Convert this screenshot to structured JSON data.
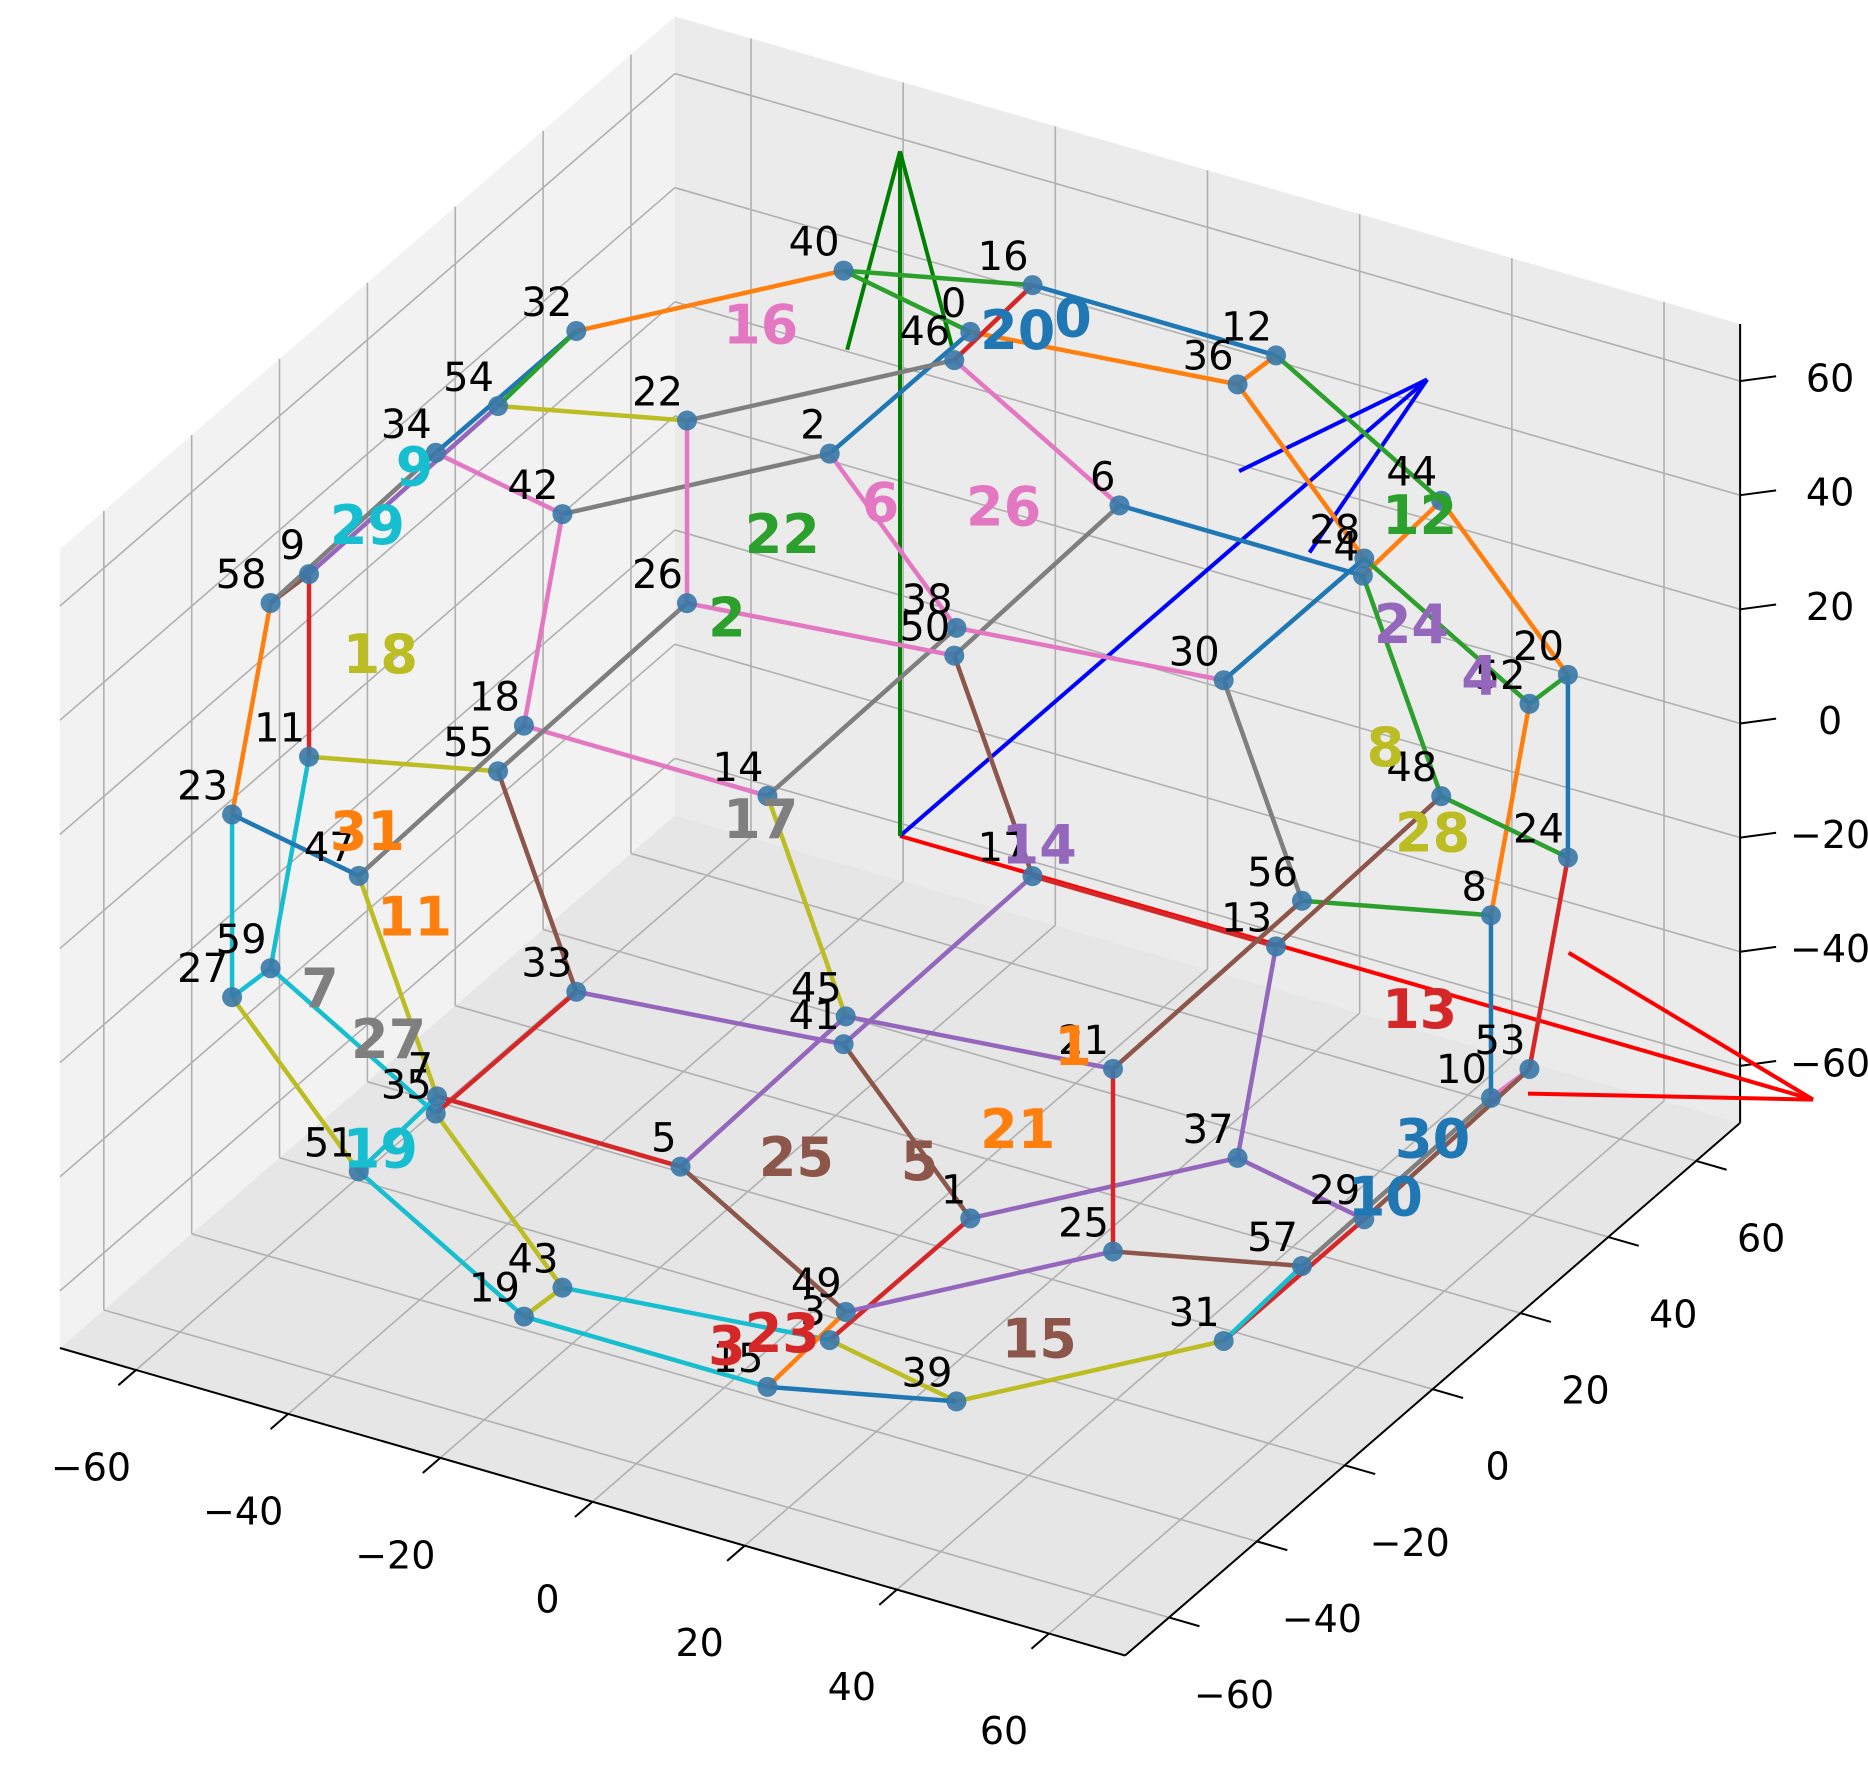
{
  "chart_data": {
    "type": "scatter3d",
    "view": {
      "elev": 30,
      "azim": -60
    },
    "grid": true,
    "xlim": [
      -70,
      70
    ],
    "ylim": [
      -70,
      70
    ],
    "zlim": [
      -70,
      70
    ],
    "xticks": [
      {
        "value": -60,
        "label": "−60"
      },
      {
        "value": -40,
        "label": "−40"
      },
      {
        "value": -20,
        "label": "−20"
      },
      0,
      20,
      40,
      60
    ],
    "yticks": [
      {
        "value": -60,
        "label": "−60"
      },
      {
        "value": -40,
        "label": "−40"
      },
      {
        "value": -20,
        "label": "−20"
      },
      0,
      20,
      40,
      60
    ],
    "zticks": [
      {
        "value": -60,
        "label": "−60"
      },
      {
        "value": -40,
        "label": "−40"
      },
      {
        "value": -20,
        "label": "−20"
      },
      0,
      20,
      40,
      60
    ],
    "edge_colors": [
      "#1f77b4",
      "#ff7f0e",
      "#2ca02c",
      "#d62728",
      "#9467bd",
      "#8c564b",
      "#e377c2",
      "#7f7f7f",
      "#bcbd22",
      "#17becf"
    ],
    "points": {
      "color": "#3a78a8",
      "x": [
        0,
        0,
        0,
        0,
        16,
        16,
        -16,
        -16,
        77.67,
        -77.67,
        77.67,
        -77.67,
        16,
        16,
        16,
        16,
        -16,
        -16,
        -16,
        -16,
        57.89,
        57.89,
        -57.89,
        -57.89,
        57.89,
        57.89,
        -57.89,
        -57.89,
        51.78,
        51.78,
        51.78,
        51.78,
        -51.78,
        -51.78,
        -51.78,
        -51.78,
        25.89,
        25.89,
        25.89,
        25.89,
        -25.89,
        -25.89,
        -25.89,
        -25.89,
        32,
        32,
        -32,
        -32,
        32,
        32,
        -32,
        -32,
        67.78,
        67.78,
        -67.78,
        -67.78,
        67.78,
        67.78,
        -67.78,
        -67.78
      ],
      "y": [
        16,
        16,
        -16,
        -16,
        77.67,
        -77.67,
        77.67,
        -77.67,
        0,
        0,
        0,
        0,
        57.89,
        57.89,
        -57.89,
        -57.89,
        57.89,
        57.89,
        -57.89,
        -57.89,
        51.78,
        -51.78,
        51.78,
        -51.78,
        51.78,
        -51.78,
        51.78,
        -51.78,
        16,
        16,
        -16,
        -16,
        16,
        16,
        -16,
        -16,
        32,
        32,
        -32,
        -32,
        32,
        32,
        -32,
        -32,
        67.78,
        -67.78,
        67.78,
        -67.78,
        67.78,
        -67.78,
        67.78,
        -67.78,
        25.89,
        25.89,
        25.89,
        25.89,
        -25.89,
        -25.89,
        -25.89,
        -25.89
      ],
      "z": [
        77.67,
        -77.67,
        77.67,
        -77.67,
        0,
        0,
        0,
        0,
        16,
        16,
        -16,
        -16,
        51.78,
        -51.78,
        51.78,
        -51.78,
        51.78,
        -51.78,
        51.78,
        -51.78,
        16,
        16,
        16,
        16,
        -16,
        -16,
        -16,
        -16,
        57.89,
        -57.89,
        57.89,
        -57.89,
        57.89,
        -57.89,
        57.89,
        -57.89,
        67.78,
        -67.78,
        67.78,
        -67.78,
        67.78,
        -67.78,
        67.78,
        -67.78,
        25.89,
        25.89,
        25.89,
        25.89,
        -25.89,
        -25.89,
        -25.89,
        -25.89,
        32,
        -32,
        32,
        -32,
        32,
        -32,
        32,
        -32
      ],
      "labels": [
        "0",
        "1",
        "2",
        "3",
        "4",
        "5",
        "6",
        "7",
        "8",
        "9",
        "10",
        "11",
        "12",
        "13",
        "14",
        "15",
        "16",
        "17",
        "18",
        "19",
        "20",
        "21",
        "22",
        "23",
        "24",
        "25",
        "26",
        "27",
        "28",
        "29",
        "30",
        "31",
        "32",
        "33",
        "34",
        "35",
        "36",
        "37",
        "38",
        "39",
        "40",
        "41",
        "42",
        "43",
        "44",
        "45",
        "46",
        "47",
        "48",
        "49",
        "50",
        "51",
        "52",
        "53",
        "54",
        "55",
        "56",
        "57",
        "58",
        "59"
      ]
    },
    "faces": {
      "x": [
        0,
        0,
        0,
        0,
        39.4,
        39.4,
        -39.4,
        -39.4,
        63.8,
        -63.8,
        63.8,
        -63.8,
        43.3,
        43.3,
        43.3,
        43.3,
        -43.3,
        -43.3,
        -43.3,
        -43.3,
        0,
        0,
        0,
        0,
        26.8,
        26.8,
        -26.8,
        -26.8,
        70,
        -70,
        70,
        -70
      ],
      "y": [
        39.4,
        39.4,
        -39.4,
        -39.4,
        63.8,
        -63.8,
        63.8,
        -63.8,
        0,
        0,
        0,
        0,
        43.3,
        43.3,
        -43.3,
        -43.3,
        43.3,
        43.3,
        -43.3,
        -43.3,
        26.8,
        26.8,
        -26.8,
        -26.8,
        70,
        -70,
        70,
        -70,
        0,
        0,
        0,
        0
      ],
      "z": [
        63.8,
        -63.8,
        63.8,
        -63.8,
        0,
        0,
        0,
        0,
        39.4,
        39.4,
        -39.4,
        -39.4,
        43.3,
        -43.3,
        43.3,
        -43.3,
        43.3,
        -43.3,
        43.3,
        -43.3,
        70,
        -70,
        70,
        -70,
        0,
        0,
        0,
        0,
        26.8,
        26.8,
        -26.8,
        -26.8
      ],
      "labels": [
        "0",
        "1",
        "2",
        "3",
        "4",
        "5",
        "6",
        "7",
        "8",
        "9",
        "10",
        "11",
        "12",
        "13",
        "14",
        "15",
        "16",
        "17",
        "18",
        "19",
        "20",
        "21",
        "22",
        "23",
        "24",
        "25",
        "26",
        "27",
        "28",
        "29",
        "30",
        "31"
      ]
    },
    "frame": {
      "x": [
        0,
        0,
        0
      ],
      "y": [
        0,
        0,
        0
      ],
      "z": [
        0,
        0,
        0
      ],
      "u": [
        120,
        0,
        0
      ],
      "v": [
        0,
        120,
        0
      ],
      "w": [
        0,
        0,
        120
      ],
      "colors": [
        "#ff0000",
        "#0000ff",
        "#008000"
      ]
    }
  }
}
